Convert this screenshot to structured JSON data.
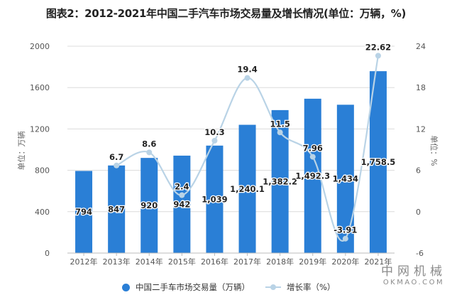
{
  "title": "图表2：2012-2021年中国二手汽车市场交易量及增长情况(单位：万辆，%)",
  "watermark": {
    "cn": "中网机械",
    "en": "OKMAO.COM"
  },
  "colors": {
    "bar": "#2a7fd6",
    "line": "#b9d3e6",
    "grid": "#dcdcdc",
    "axis_text": "#555555"
  },
  "chart_data": {
    "type": "bar+line",
    "title": "图表2：2012-2021年中国二手汽车市场交易量及增长情况(单位：万辆，%)",
    "categories": [
      "2012年",
      "2013年",
      "2014年",
      "2015年",
      "2016年",
      "2017年",
      "2018年",
      "2019年",
      "2020年",
      "2021年"
    ],
    "series": [
      {
        "name": "中国二手车市场交易量（万辆）",
        "type": "bar",
        "axis": "left",
        "values": [
          794,
          847,
          920,
          942,
          1039,
          1240.1,
          1382.2,
          1492.3,
          1434,
          1758.5
        ],
        "labels": [
          "794",
          "847",
          "920",
          "942",
          "1,039",
          "1,240.1",
          "1,382.2",
          "1,492.3",
          "1,434",
          "1,758.5"
        ]
      },
      {
        "name": "增长率（%）",
        "type": "line",
        "axis": "right",
        "values": [
          null,
          6.7,
          8.6,
          2.4,
          10.3,
          19.4,
          11.5,
          7.96,
          -3.91,
          22.62
        ],
        "labels": [
          "",
          "6.7",
          "8.6",
          "2.4",
          "10.3",
          "19.4",
          "11.5",
          "7.96",
          "-3.91",
          "22.62"
        ]
      }
    ],
    "y_left": {
      "label": "单位：万辆",
      "ylim": [
        0,
        2000
      ],
      "ticks": [
        0,
        400,
        800,
        1200,
        1600,
        2000
      ]
    },
    "y_right": {
      "label": "单位：%",
      "ylim": [
        -6,
        24
      ],
      "ticks": [
        -6,
        0,
        6,
        12,
        18,
        24
      ]
    },
    "grid": true,
    "legend_position": "bottom"
  }
}
